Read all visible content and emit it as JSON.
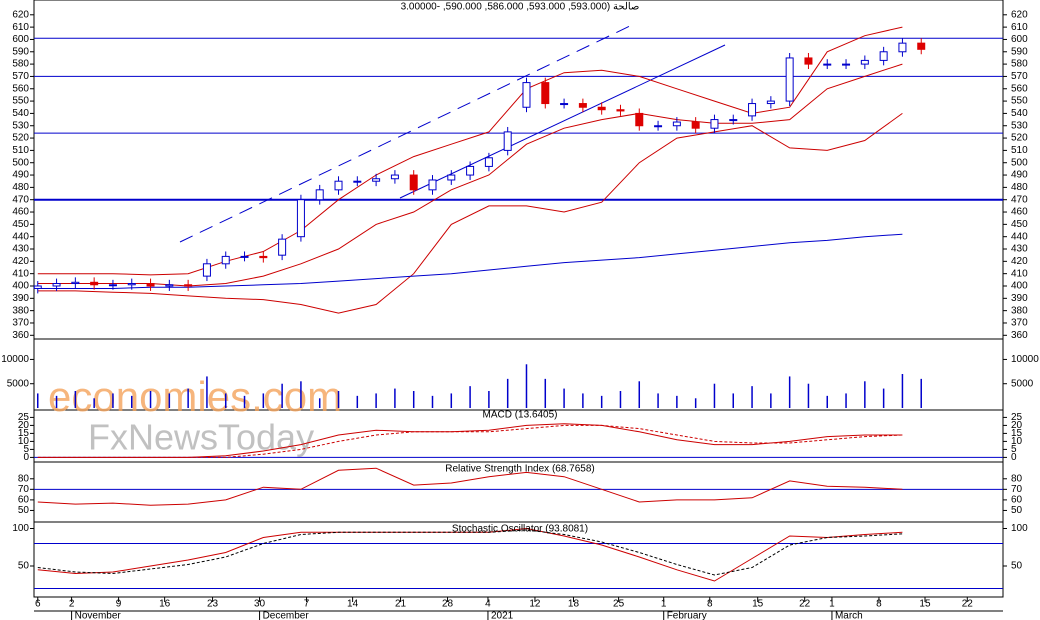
{
  "chart_data": {
    "type": "candlestick",
    "title": "3.00000-  ,590.000 ,586.000 ,593.000  ,593.000) صالحة",
    "watermark": [
      "economies.com",
      "FxNewsToday"
    ],
    "xlim": [
      -0.4,
      102.7
    ],
    "xticks": [
      {
        "value": 0,
        "label": "6"
      },
      {
        "value": 3.6,
        "label": "2"
      },
      {
        "value": 8.6,
        "label": "9"
      },
      {
        "value": 13.5,
        "label": "16"
      },
      {
        "value": 18.6,
        "label": "23"
      },
      {
        "value": 23.6,
        "label": "30"
      },
      {
        "value": 28.6,
        "label": "7"
      },
      {
        "value": 33.5,
        "label": "14"
      },
      {
        "value": 38.6,
        "label": "21"
      },
      {
        "value": 43.6,
        "label": "28"
      },
      {
        "value": 47.9,
        "label": "4"
      },
      {
        "value": 52.9,
        "label": "12"
      },
      {
        "value": 57,
        "label": "18"
      },
      {
        "value": 61.8,
        "label": "25"
      },
      {
        "value": 66.6,
        "label": "1"
      },
      {
        "value": 71.5,
        "label": "8"
      },
      {
        "value": 76.6,
        "label": "15"
      },
      {
        "value": 81.6,
        "label": "22"
      },
      {
        "value": 84.5,
        "label": "1"
      },
      {
        "value": 89.5,
        "label": "8"
      },
      {
        "value": 94.4,
        "label": "15"
      },
      {
        "value": 98.9,
        "label": "22"
      }
    ],
    "months": [
      {
        "value": 3.6,
        "label": "November"
      },
      {
        "value": 23.6,
        "label": "December"
      },
      {
        "value": 47.9,
        "label": "2021"
      },
      {
        "value": 66.6,
        "label": "February"
      },
      {
        "value": 84.5,
        "label": "March"
      }
    ],
    "ylim": [
      357,
      632
    ],
    "yticks": [
      360,
      370,
      380,
      390,
      400,
      410,
      420,
      430,
      440,
      450,
      460,
      470,
      480,
      490,
      500,
      510,
      520,
      530,
      540,
      550,
      560,
      570,
      580,
      590,
      600,
      610,
      620
    ],
    "levels": [
      601,
      570,
      524,
      470
    ],
    "x": [
      0,
      2,
      4,
      6,
      8,
      10,
      12,
      14,
      16,
      18,
      20,
      22,
      24,
      26,
      28,
      30,
      32,
      34,
      36,
      38,
      40,
      42,
      44,
      46,
      48,
      50,
      52,
      54,
      56,
      58,
      60,
      62,
      64,
      66,
      68,
      70,
      72,
      74,
      76,
      78,
      80,
      82,
      84,
      86,
      88,
      90,
      92,
      94
    ],
    "open": [
      398,
      400,
      402,
      403,
      401,
      401,
      402,
      400,
      401,
      408,
      418,
      424,
      424,
      425,
      440,
      470,
      478,
      485,
      485,
      487,
      490,
      478,
      486,
      490,
      497,
      510,
      545,
      565,
      548,
      548,
      545,
      543,
      540,
      530,
      530,
      533,
      528,
      535,
      538,
      548,
      550,
      585,
      580,
      580,
      580,
      583,
      590,
      597
    ],
    "high": [
      404,
      406,
      407,
      407,
      405,
      406,
      406,
      405,
      405,
      422,
      428,
      428,
      428,
      442,
      474,
      482,
      489,
      489,
      491,
      494,
      494,
      490,
      494,
      501,
      508,
      529,
      569,
      569,
      552,
      552,
      549,
      547,
      544,
      534,
      537,
      537,
      539,
      539,
      552,
      554,
      589,
      589,
      584,
      584,
      587,
      594,
      601,
      601
    ],
    "low": [
      394,
      396,
      398,
      397,
      397,
      397,
      396,
      396,
      396,
      404,
      414,
      420,
      419,
      421,
      436,
      466,
      474,
      481,
      481,
      483,
      474,
      474,
      482,
      486,
      493,
      506,
      541,
      544,
      544,
      541,
      539,
      538,
      526,
      526,
      526,
      524,
      524,
      531,
      534,
      544,
      546,
      576,
      576,
      576,
      576,
      579,
      586,
      588
    ],
    "close": [
      400,
      402,
      403,
      401,
      401,
      402,
      400,
      401,
      400,
      418,
      424,
      424,
      423,
      438,
      470,
      478,
      485,
      485,
      487,
      490,
      478,
      486,
      490,
      497,
      504,
      525,
      565,
      548,
      548,
      545,
      543,
      542,
      530,
      530,
      533,
      528,
      535,
      535,
      548,
      550,
      585,
      580,
      580,
      580,
      583,
      590,
      597,
      592
    ],
    "up_color": "#0000cc",
    "down_color": "#dd0000",
    "ix": [
      0,
      4,
      8,
      12,
      16,
      20,
      24,
      28,
      32,
      36,
      40,
      44,
      48,
      52,
      56,
      60,
      64,
      68,
      72,
      76,
      80,
      84,
      88,
      92
    ],
    "overlays": [
      {
        "color": "#cc0000",
        "values": [
          410,
          410,
          410,
          409,
          410,
          420,
          428,
          445,
          470,
          490,
          505,
          515,
          525,
          560,
          573,
          575,
          570,
          560,
          550,
          540,
          545,
          590,
          603,
          610
        ]
      },
      {
        "color": "#cc0000",
        "values": [
          402,
          402,
          402,
          402,
          400,
          402,
          408,
          418,
          430,
          450,
          460,
          478,
          490,
          515,
          528,
          535,
          540,
          535,
          532,
          532,
          535,
          560,
          570,
          580
        ]
      },
      {
        "color": "#cc0000",
        "values": [
          396,
          396,
          395,
          394,
          392,
          390,
          389,
          385,
          378,
          385,
          410,
          450,
          465,
          465,
          460,
          468,
          500,
          520,
          525,
          530,
          512,
          510,
          518,
          540
        ]
      },
      {
        "color": "#0000cc",
        "values": [
          398,
          398,
          398,
          399,
          399,
          400,
          401,
          402,
          404,
          406,
          408,
          410,
          413,
          416,
          419,
          421,
          423,
          426,
          429,
          432,
          435,
          437,
          440,
          442
        ]
      }
    ],
    "volume": {
      "ylim": [
        0,
        14000
      ],
      "yticks": [
        5000,
        10000
      ],
      "color": "#0000cc",
      "values": [
        3000,
        2500,
        3500,
        2000,
        3000,
        2500,
        3500,
        3000,
        4000,
        6500,
        3000,
        2500,
        3000,
        5000,
        5500,
        2000,
        3500,
        2500,
        3000,
        4000,
        3500,
        2500,
        3000,
        4500,
        3500,
        6000,
        9000,
        6000,
        4000,
        3000,
        2500,
        3500,
        5500,
        3000,
        2500,
        2000,
        5000,
        3000,
        4500,
        3000,
        6500,
        5000,
        2500,
        3000,
        5500,
        4000,
        7000,
        6000
      ]
    },
    "macd": {
      "title": "MACD (13.6405)",
      "ylim": [
        -1,
        29
      ],
      "yticks": [
        0,
        5,
        10,
        15,
        20,
        25
      ],
      "levels": [
        0
      ],
      "series": [
        {
          "color": "#cc0000",
          "values": [
            0,
            0,
            0,
            0,
            0,
            1,
            4,
            8,
            14,
            17,
            16,
            16,
            17,
            20,
            21,
            20,
            16,
            11,
            8,
            8,
            10,
            13,
            14,
            14
          ]
        },
        {
          "color": "#cc0000",
          "dash": true,
          "values": [
            0,
            0,
            0,
            0,
            0,
            0,
            2,
            5,
            10,
            14,
            16,
            16,
            16,
            18,
            20,
            20,
            18,
            14,
            10,
            9,
            9,
            11,
            13,
            14
          ]
        }
      ]
    },
    "rsi": {
      "title": "Relative Strength Index (68.7658)",
      "ylim": [
        40,
        94
      ],
      "yticks": [
        50,
        60,
        70,
        80
      ],
      "levels": [
        70
      ],
      "series": [
        {
          "color": "#cc0000",
          "values": [
            58,
            56,
            57,
            55,
            56,
            60,
            72,
            70,
            88,
            90,
            74,
            76,
            82,
            86,
            82,
            70,
            58,
            60,
            60,
            62,
            78,
            73,
            72,
            70
          ]
        }
      ]
    },
    "stoch": {
      "title": "Stochastic Oscillator (93.8081)",
      "ylim": [
        10,
        106
      ],
      "yticks": [
        50,
        100
      ],
      "levels": [
        80,
        20
      ],
      "series": [
        {
          "color": "#cc0000",
          "values": [
            45,
            40,
            42,
            50,
            58,
            68,
            88,
            95,
            95,
            95,
            95,
            95,
            95,
            100,
            90,
            78,
            62,
            45,
            30,
            60,
            90,
            88,
            92,
            95
          ]
        },
        {
          "color": "#000000",
          "dash": true,
          "values": [
            48,
            42,
            40,
            46,
            52,
            62,
            80,
            92,
            95,
            95,
            95,
            95,
            95,
            98,
            92,
            82,
            68,
            52,
            38,
            48,
            78,
            88,
            90,
            93
          ]
        }
      ]
    }
  }
}
